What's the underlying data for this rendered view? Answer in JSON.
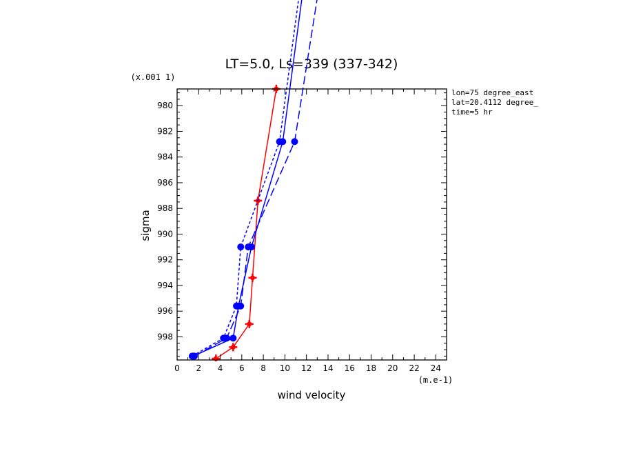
{
  "chart_data": {
    "type": "line",
    "title": "LT=5.0, Ls=339 (337-342)",
    "xlabel": "wind velocity",
    "ylabel": "sigma",
    "x_unit": "(m.e-1)",
    "y_unit": "(x.001 1)",
    "xlim": [
      0,
      25
    ],
    "ylim": [
      999.8,
      978.7
    ],
    "x_ticks": [
      0,
      2,
      4,
      6,
      8,
      10,
      12,
      14,
      16,
      18,
      20,
      22,
      24
    ],
    "y_ticks": [
      980,
      982,
      984,
      986,
      988,
      990,
      992,
      994,
      996,
      998
    ],
    "info_lines": [
      "lon=75 degree_east",
      "lat=20.4112 degree_",
      "time=5 hr"
    ],
    "series": [
      {
        "color": "#ff0000",
        "dash": "solid",
        "marker": "plus",
        "points": [
          {
            "x": 3.6,
            "y": 999.7
          },
          {
            "x": 5.2,
            "y": 998.8
          },
          {
            "x": 6.7,
            "y": 997.0
          },
          {
            "x": 7.0,
            "y": 993.4
          },
          {
            "x": 7.5,
            "y": 987.4
          },
          {
            "x": 9.2,
            "y": 978.7
          }
        ],
        "extension": []
      },
      {
        "color": "#0000ff",
        "dash": "solid",
        "marker": "dot",
        "points": [
          {
            "x": 1.5,
            "y": 999.5
          },
          {
            "x": 5.2,
            "y": 998.1
          },
          {
            "x": 5.7,
            "y": 995.6
          },
          {
            "x": 6.9,
            "y": 991.0
          },
          {
            "x": 9.8,
            "y": 982.8
          }
        ],
        "extension": [
          {
            "x": 12.0,
            "y": 969.0
          }
        ]
      },
      {
        "color": "#0000ff",
        "dash": "shortdash",
        "marker": "dot",
        "points": [
          {
            "x": 1.4,
            "y": 999.5
          },
          {
            "x": 4.3,
            "y": 998.1
          },
          {
            "x": 5.5,
            "y": 995.6
          },
          {
            "x": 5.9,
            "y": 991.0
          },
          {
            "x": 9.5,
            "y": 982.8
          }
        ],
        "extension": [
          {
            "x": 11.7,
            "y": 969.0
          }
        ]
      },
      {
        "color": "#0000ff",
        "dash": "longdash",
        "marker": "dot",
        "points": [
          {
            "x": 1.6,
            "y": 999.5
          },
          {
            "x": 4.6,
            "y": 998.1
          },
          {
            "x": 5.9,
            "y": 995.6
          },
          {
            "x": 6.6,
            "y": 991.0
          },
          {
            "x": 10.9,
            "y": 982.8
          }
        ],
        "extension": [
          {
            "x": 13.5,
            "y": 969.0
          }
        ]
      }
    ]
  }
}
